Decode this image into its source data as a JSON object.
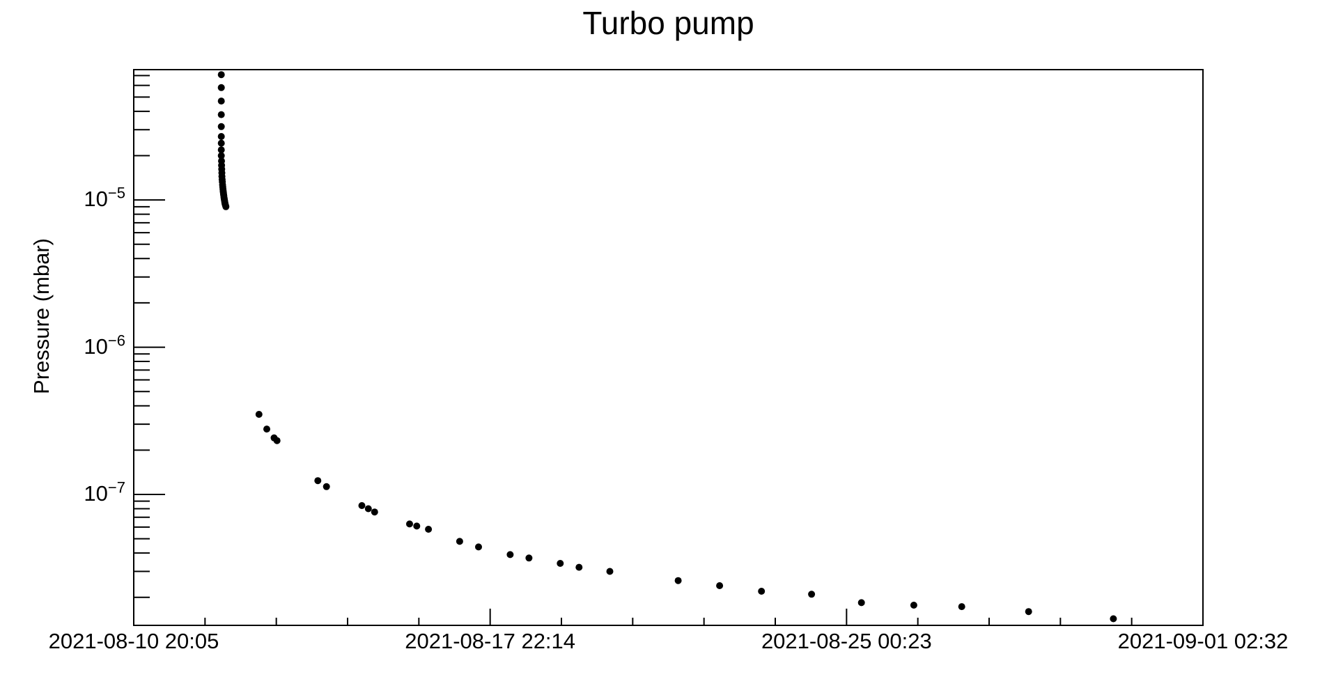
{
  "title": "Turbo pump",
  "y_axis": {
    "label": "Pressure (mbar)",
    "scale": "log",
    "major_tick_exponents": [
      -5,
      -6,
      -7
    ]
  },
  "x_axis": {
    "labels": [
      "2021-08-10 20:05",
      "2021-08-17 22:14",
      "2021-08-25 00:23",
      "2021-09-01 02:32"
    ],
    "major_tick_hours": [
      0,
      170.15,
      340.3,
      510.45
    ],
    "minor_tick_step_hours": 34.03
  },
  "colors": {
    "marker": "#000000",
    "axis": "#000000",
    "background": "#ffffff"
  },
  "chart_data": {
    "type": "scatter",
    "title": "Turbo pump",
    "ylabel": "Pressure (mbar)",
    "xlabel": "",
    "x_unit": "hours since 2021-08-10 20:05",
    "xlim": [
      0,
      510.45
    ],
    "ylim": [
      1.29e-08,
      7.68e-05
    ],
    "y_scale": "log",
    "grid": false,
    "legend": "none",
    "marker": {
      "shape": "filled-circle",
      "radius_px": 5,
      "color": "#000000"
    },
    "x_tick_labels": [
      "2021-08-10 20:05",
      "2021-08-17 22:14",
      "2021-08-25 00:23",
      "2021-09-01 02:32"
    ],
    "y_tick_labels": [
      "10^-5",
      "10^-6",
      "10^-7"
    ],
    "series": [
      {
        "name": "pressure",
        "points": [
          [
            41.8,
            7.1e-05
          ],
          [
            41.8,
            5.8e-05
          ],
          [
            41.8,
            4.7e-05
          ],
          [
            41.8,
            3.8e-05
          ],
          [
            41.8,
            3.15e-05
          ],
          [
            41.8,
            2.7e-05
          ],
          [
            41.8,
            2.43e-05
          ],
          [
            41.8,
            2.19e-05
          ],
          [
            41.8,
            2e-05
          ],
          [
            41.9,
            1.84e-05
          ],
          [
            41.95,
            1.72e-05
          ],
          [
            42.0,
            1.62e-05
          ],
          [
            42.05,
            1.53e-05
          ],
          [
            42.1,
            1.45e-05
          ],
          [
            42.2,
            1.38e-05
          ],
          [
            42.3,
            1.33e-05
          ],
          [
            42.4,
            1.27e-05
          ],
          [
            42.5,
            1.23e-05
          ],
          [
            42.6,
            1.19e-05
          ],
          [
            42.7,
            1.15e-05
          ],
          [
            42.8,
            1.12e-05
          ],
          [
            42.9,
            1.09e-05
          ],
          [
            43.0,
            1.07e-05
          ],
          [
            43.1,
            1.04e-05
          ],
          [
            43.2,
            1.02e-05
          ],
          [
            43.3,
            1e-05
          ],
          [
            43.4,
            9.8e-06
          ],
          [
            43.5,
            9.6e-06
          ],
          [
            43.6,
            9.4e-06
          ],
          [
            43.8,
            9.2e-06
          ],
          [
            44.0,
            9e-06
          ],
          [
            59.8,
            3.5e-07
          ],
          [
            63.5,
            2.78e-07
          ],
          [
            67.0,
            2.42e-07
          ],
          [
            68.4,
            2.32e-07
          ],
          [
            87.9,
            1.24e-07
          ],
          [
            92.0,
            1.13e-07
          ],
          [
            108.9,
            8.4e-08
          ],
          [
            112.0,
            8e-08
          ],
          [
            115.0,
            7.6e-08
          ],
          [
            131.7,
            6.3e-08
          ],
          [
            135.1,
            6.1e-08
          ],
          [
            140.7,
            5.8e-08
          ],
          [
            155.6,
            4.8e-08
          ],
          [
            164.6,
            4.4e-08
          ],
          [
            179.7,
            3.9e-08
          ],
          [
            188.7,
            3.7e-08
          ],
          [
            203.6,
            3.4e-08
          ],
          [
            212.6,
            3.2e-08
          ],
          [
            227.3,
            3e-08
          ],
          [
            259.9,
            2.6e-08
          ],
          [
            279.7,
            2.4e-08
          ],
          [
            299.7,
            2.2e-08
          ],
          [
            323.6,
            2.1e-08
          ],
          [
            347.4,
            1.84e-08
          ],
          [
            372.4,
            1.77e-08
          ],
          [
            395.3,
            1.73e-08
          ],
          [
            427.2,
            1.6e-08
          ],
          [
            467.7,
            1.43e-08
          ]
        ]
      }
    ]
  }
}
